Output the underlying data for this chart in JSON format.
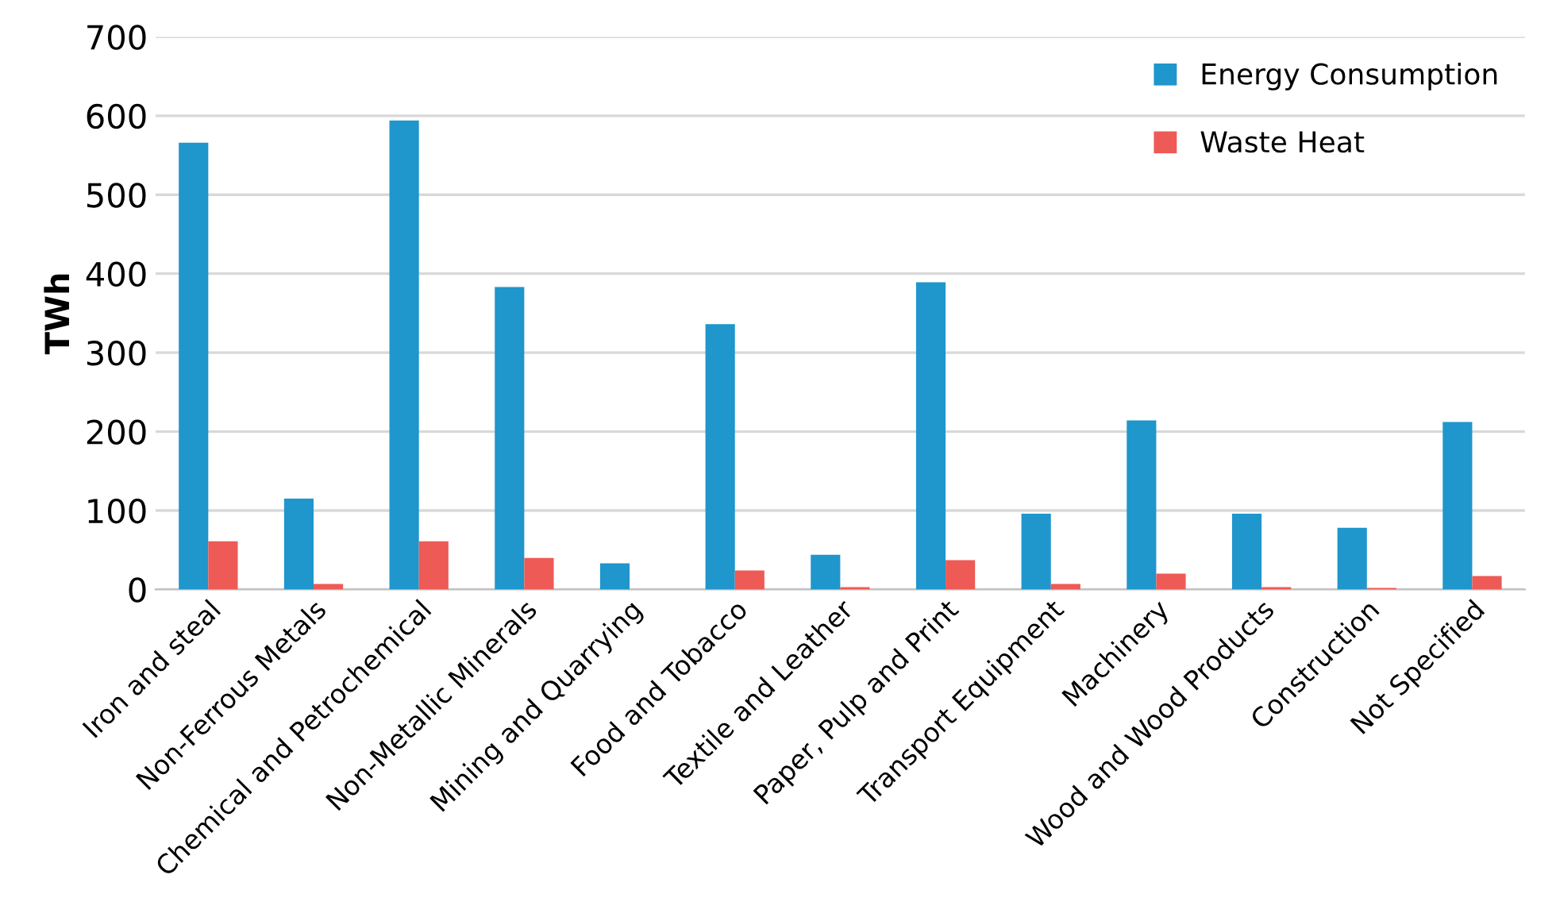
{
  "chart_data": {
    "type": "bar",
    "ylabel": "TWh",
    "categories": [
      "Iron and steal",
      "Non-Ferrous Metals",
      "Chemical and Petrochemical",
      "Non-Metallic Minerals",
      "Mining and Quarrying",
      "Food and Tobacco",
      "Textile and Leather",
      "Paper, Pulp and Print",
      "Transport Equipment",
      "Machinery",
      "Wood and Wood Products",
      "Construction",
      "Not Specified"
    ],
    "series": [
      {
        "name": "Energy Consumption",
        "color": "#1f96cc",
        "values": [
          566,
          115,
          594,
          383,
          33,
          336,
          44,
          389,
          96,
          214,
          96,
          78,
          212
        ]
      },
      {
        "name": "Waste Heat",
        "color": "#ee5a55",
        "values": [
          61,
          7,
          61,
          40,
          0,
          24,
          3,
          37,
          7,
          20,
          3,
          2,
          17
        ]
      }
    ],
    "ylim": [
      0,
      700
    ],
    "yticks": [
      0,
      100,
      200,
      300,
      400,
      500,
      600,
      700
    ],
    "grid": "y",
    "legend": "top right"
  }
}
